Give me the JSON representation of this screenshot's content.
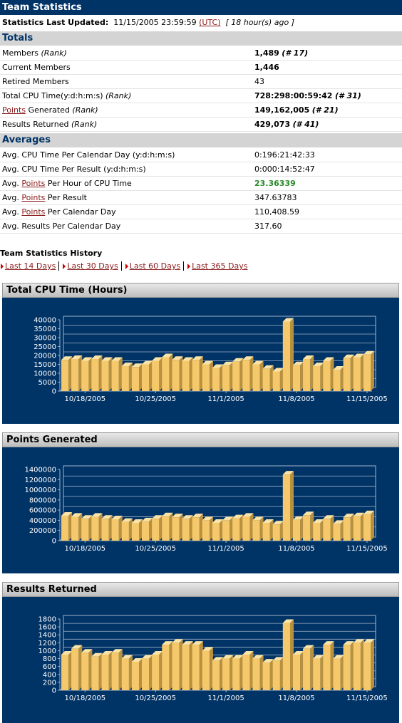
{
  "header": {
    "title": "Team Statistics",
    "updated_label": "Statistics Last Updated:",
    "updated_value": "11/15/2005 23:59:59",
    "timezone": "(UTC)",
    "ago": "[ 18 hour(s) ago ]"
  },
  "totals": {
    "title": "Totals",
    "rows": [
      {
        "label": [
          "Members ",
          {
            "i": "(Rank)"
          }
        ],
        "value": [
          {
            "b": "1,489"
          },
          {
            "bi": "(# 17)"
          }
        ]
      },
      {
        "label": [
          "Current Members"
        ],
        "value": [
          {
            "b": "1,446"
          }
        ]
      },
      {
        "label": [
          "Retired Members"
        ],
        "value": [
          "43"
        ]
      },
      {
        "label": [
          "Total CPU Time(y:d:h:m:s) ",
          {
            "i": "(Rank)"
          }
        ],
        "value": [
          {
            "b": "728:298:00:59:42"
          },
          {
            "bi": "(# 31)"
          }
        ]
      },
      {
        "label": [
          {
            "a": "Points"
          },
          " Generated ",
          {
            "i": "(Rank)"
          }
        ],
        "value": [
          {
            "b": "149,162,005"
          },
          {
            "bi": "(# 21)"
          }
        ]
      },
      {
        "label": [
          "Results Returned ",
          {
            "i": "(Rank)"
          }
        ],
        "value": [
          {
            "b": "429,073"
          },
          {
            "bi": "(# 41)"
          }
        ]
      }
    ]
  },
  "averages": {
    "title": "Averages",
    "rows": [
      {
        "label": [
          "Avg. CPU Time Per Calendar Day (y:d:h:m:s)"
        ],
        "value": [
          "0:196:21:42:33"
        ]
      },
      {
        "label": [
          "Avg. CPU Time Per Result (y:d:h:m:s)"
        ],
        "value": [
          "0:000:14:52:47"
        ]
      },
      {
        "label": [
          "Avg. ",
          {
            "a": "Points"
          },
          " Per Hour of CPU Time"
        ],
        "value": [
          {
            "g": "23.36339"
          }
        ]
      },
      {
        "label": [
          "Avg. ",
          {
            "a": "Points"
          },
          " Per Result"
        ],
        "value": [
          "347.63783"
        ]
      },
      {
        "label": [
          "Avg. ",
          {
            "a": "Points"
          },
          " Per Calendar Day"
        ],
        "value": [
          "110,408.59"
        ]
      },
      {
        "label": [
          "Avg. Results Per Calendar Day"
        ],
        "value": [
          "317.60"
        ]
      }
    ]
  },
  "history": {
    "title": "Team Statistics History",
    "links": [
      "Last 14 Days",
      "Last 30 Days",
      "Last 60 Days",
      "Last 365 Days"
    ]
  },
  "chart_data": [
    {
      "type": "bar",
      "title": "Total CPU Time (Hours)",
      "color": "#f5c96b",
      "categories": [
        null,
        null,
        "10/18/2005",
        null,
        null,
        null,
        null,
        null,
        null,
        "10/25/2005",
        null,
        null,
        null,
        null,
        null,
        null,
        "11/1/2005",
        null,
        null,
        null,
        null,
        null,
        null,
        "11/8/2005",
        null,
        null,
        null,
        null,
        null,
        null,
        "11/15/2005"
      ],
      "values": [
        17500,
        18000,
        17000,
        18000,
        17000,
        17000,
        14000,
        13500,
        15000,
        17000,
        19000,
        17500,
        17000,
        17500,
        15000,
        13000,
        14500,
        16500,
        17500,
        15000,
        12500,
        11000,
        39000,
        14500,
        18000,
        14000,
        17000,
        12000,
        18500,
        19000,
        20500
      ],
      "ylim": [
        0,
        40000
      ],
      "yticks": [
        0,
        5000,
        10000,
        15000,
        20000,
        25000,
        30000,
        35000,
        40000
      ]
    },
    {
      "type": "bar",
      "title": "Points Generated",
      "color": "#f5c96b",
      "categories": [
        null,
        null,
        "10/18/2005",
        null,
        null,
        null,
        null,
        null,
        null,
        "10/25/2005",
        null,
        null,
        null,
        null,
        null,
        null,
        "11/1/2005",
        null,
        null,
        null,
        null,
        null,
        null,
        "11/8/2005",
        null,
        null,
        null,
        null,
        null,
        null,
        "11/15/2005"
      ],
      "values": [
        490000,
        470000,
        430000,
        470000,
        430000,
        420000,
        370000,
        350000,
        380000,
        430000,
        480000,
        460000,
        430000,
        460000,
        400000,
        350000,
        400000,
        440000,
        470000,
        400000,
        350000,
        320000,
        1300000,
        410000,
        500000,
        350000,
        430000,
        330000,
        460000,
        480000,
        520000
      ],
      "ylim": [
        0,
        1400000
      ],
      "yticks": [
        0,
        200000,
        400000,
        600000,
        800000,
        1000000,
        1200000,
        1400000
      ]
    },
    {
      "type": "bar",
      "title": "Results Returned",
      "color": "#f5c96b",
      "categories": [
        null,
        null,
        "10/18/2005",
        null,
        null,
        null,
        null,
        null,
        null,
        "10/25/2005",
        null,
        null,
        null,
        null,
        null,
        null,
        "11/1/2005",
        null,
        null,
        null,
        null,
        null,
        null,
        "11/8/2005",
        null,
        null,
        null,
        null,
        null,
        null,
        "11/15/2005"
      ],
      "values": [
        900,
        1050,
        950,
        850,
        900,
        950,
        800,
        720,
        800,
        900,
        1150,
        1200,
        1150,
        1150,
        1000,
        750,
        800,
        800,
        900,
        800,
        700,
        750,
        1700,
        900,
        1050,
        800,
        1150,
        800,
        1150,
        1200,
        1200
      ],
      "ylim": [
        0,
        1800
      ],
      "yticks": [
        0,
        200,
        400,
        600,
        800,
        1000,
        1200,
        1400,
        1600,
        1800
      ]
    }
  ]
}
